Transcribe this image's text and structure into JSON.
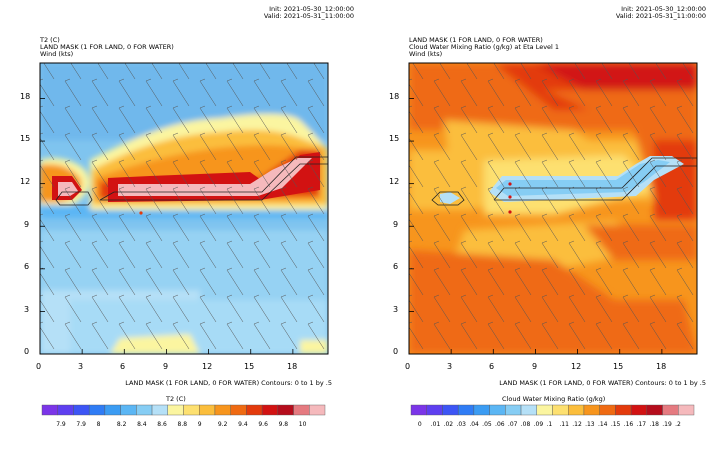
{
  "panels": [
    {
      "init": "Init: 2021-05-30_12:00:00",
      "valid": "Valid: 2021-05-31_11:00:00",
      "header_lines": [
        "T2 (C)",
        "LAND MASK (1 FOR LAND, 0 FOR WATER)",
        "Wind (kts)"
      ],
      "contour_note": "LAND MASK (1 FOR LAND, 0 FOR WATER) Contours: 0 to 1 by .5",
      "colorbar_title": "T2 (C)",
      "colorbar_labels": [
        "7.9",
        "7.9",
        "8",
        "8.2",
        "8.4",
        "8.6",
        "8.8",
        "9",
        "9.2",
        "9.4",
        "9.6",
        "9.8",
        "10"
      ],
      "colorbar_colors": [
        "#7b35e8",
        "#5e3ff0",
        "#3c55f5",
        "#2f7cf5",
        "#3b9cf3",
        "#5bb6f4",
        "#86cdf4",
        "#b5e0f7",
        "#fbf5a0",
        "#fde070",
        "#fbbe3c",
        "#f7951d",
        "#ef6a12",
        "#e33a0c",
        "#d21212",
        "#b50d1c",
        "#e57a80",
        "#f5b9bc"
      ],
      "ticks": [
        "0",
        "3",
        "6",
        "9",
        "12",
        "15",
        "18"
      ]
    },
    {
      "init": "Init: 2021-05-30_12:00:00",
      "valid": "Valid: 2021-05-31_11:00:00",
      "header_lines": [
        "LAND MASK (1 FOR LAND, 0 FOR WATER)",
        "Cloud Water Mixing Ratio (g/kg) at Eta Level 1",
        "Wind (kts)"
      ],
      "contour_note": "LAND MASK (1 FOR LAND, 0 FOR WATER) Contours: 0 to 1 by .5",
      "colorbar_title": "Cloud Water Mixing Ratio (g/kg)",
      "colorbar_labels": [
        "0",
        ".01",
        ".02",
        ".03",
        ".04",
        ".05",
        ".06",
        ".07",
        ".08",
        ".09",
        ".1",
        ".11",
        ".12",
        ".13",
        ".14",
        ".15",
        ".16",
        ".17",
        ".18",
        ".19",
        ".2"
      ],
      "colorbar_colors": [
        "#7b35e8",
        "#5e3ff0",
        "#3c55f5",
        "#2f7cf5",
        "#3b9cf3",
        "#5bb6f4",
        "#86cdf4",
        "#b5e0f7",
        "#fbf5a0",
        "#fde070",
        "#fbbe3c",
        "#f7951d",
        "#ef6a12",
        "#e33a0c",
        "#d21212",
        "#b50d1c",
        "#e57a80",
        "#f5b9bc"
      ],
      "ticks": [
        "0",
        "3",
        "6",
        "9",
        "12",
        "15",
        "18"
      ]
    }
  ],
  "chart_data": [
    {
      "type": "heatmap",
      "title": "T2 (C)",
      "xlabel": "LAND MASK (1 FOR LAND, 0 FOR WATER) Contours: 0 to 1 by .5",
      "ylabel": "",
      "xlim": [
        0,
        20.5
      ],
      "ylim": [
        0,
        20.5
      ],
      "xticks": [
        0,
        3,
        6,
        9,
        12,
        15,
        18
      ],
      "yticks": [
        0,
        3,
        6,
        9,
        12,
        15,
        18
      ],
      "colorbar": {
        "label": "T2 (C)",
        "range": [
          7.8,
          10.0
        ]
      },
      "overlays": [
        "land mask contour at 0.5",
        "wind barbs (kts)"
      ],
      "regions": [
        {
          "name": "background water",
          "value": 8.6
        },
        {
          "name": "land island west (x 0.5-3.5, y 10.5-13)",
          "value_max": 10.0
        },
        {
          "name": "land strip (x 5.5-20, y 10.5-14.5)",
          "value_max": 10.0
        },
        {
          "name": "warm band north (x 4-19, y 12-16)",
          "value": 9.4
        },
        {
          "name": "south border warm patch (x 5-12, y 0-1)",
          "value": 9.0
        }
      ]
    },
    {
      "type": "heatmap",
      "title": "Cloud Water Mixing Ratio (g/kg) at Eta Level 1",
      "xlabel": "LAND MASK (1 FOR LAND, 0 FOR WATER) Contours: 0 to 1 by .5",
      "ylabel": "",
      "xlim": [
        0,
        20.5
      ],
      "ylim": [
        0,
        20.5
      ],
      "xticks": [
        0,
        3,
        6,
        9,
        12,
        15,
        18
      ],
      "yticks": [
        0,
        3,
        6,
        9,
        12,
        15,
        18
      ],
      "colorbar": {
        "label": "Cloud Water Mixing Ratio (g/kg)",
        "range": [
          0,
          0.2
        ]
      },
      "overlays": [
        "land mask contour at 0.5",
        "wind barbs (kts)"
      ],
      "regions": [
        {
          "name": "background",
          "value": 0.15
        },
        {
          "name": "north maximum (x 9-18, y 15-20)",
          "value": 0.18
        },
        {
          "name": "land strip (x 6-17, y 10.5-13)",
          "value": 0.07
        },
        {
          "name": "west island (x 1.5-3.5, y 10.5-12)",
          "value": 0.09
        }
      ]
    }
  ]
}
